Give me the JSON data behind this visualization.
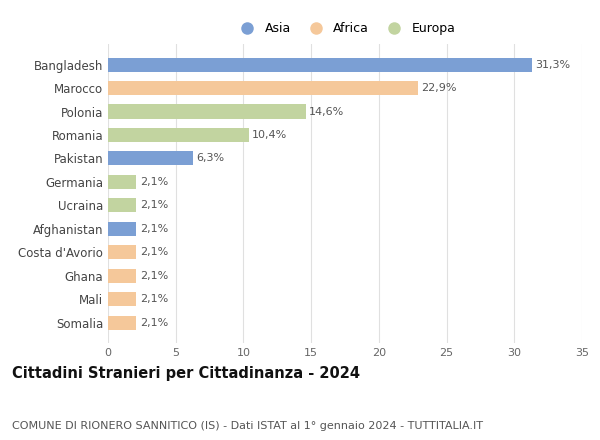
{
  "categories": [
    "Bangladesh",
    "Marocco",
    "Polonia",
    "Romania",
    "Pakistan",
    "Germania",
    "Ucraina",
    "Afghanistan",
    "Costa d'Avorio",
    "Ghana",
    "Mali",
    "Somalia"
  ],
  "values": [
    31.3,
    22.9,
    14.6,
    10.4,
    6.3,
    2.1,
    2.1,
    2.1,
    2.1,
    2.1,
    2.1,
    2.1
  ],
  "labels": [
    "31,3%",
    "22,9%",
    "14,6%",
    "10,4%",
    "6,3%",
    "2,1%",
    "2,1%",
    "2,1%",
    "2,1%",
    "2,1%",
    "2,1%",
    "2,1%"
  ],
  "bar_colors": [
    "#7b9fd4",
    "#f5c89a",
    "#c2d4a0",
    "#c2d4a0",
    "#7b9fd4",
    "#c2d4a0",
    "#c2d4a0",
    "#7b9fd4",
    "#f5c89a",
    "#f5c89a",
    "#f5c89a",
    "#f5c89a"
  ],
  "legend_labels": [
    "Asia",
    "Africa",
    "Europa"
  ],
  "legend_colors": [
    "#7b9fd4",
    "#f5c89a",
    "#c2d4a0"
  ],
  "xlim": [
    0,
    35
  ],
  "xticks": [
    0,
    5,
    10,
    15,
    20,
    25,
    30,
    35
  ],
  "title": "Cittadini Stranieri per Cittadinanza - 2024",
  "subtitle": "COMUNE DI RIONERO SANNITICO (IS) - Dati ISTAT al 1° gennaio 2024 - TUTTITALIA.IT",
  "background_color": "#ffffff",
  "grid_color": "#e0e0e0",
  "bar_height": 0.6,
  "label_fontsize": 8.0,
  "title_fontsize": 10.5,
  "subtitle_fontsize": 8.0,
  "tick_fontsize": 8.0,
  "ytick_fontsize": 8.5,
  "legend_fontsize": 9.0
}
